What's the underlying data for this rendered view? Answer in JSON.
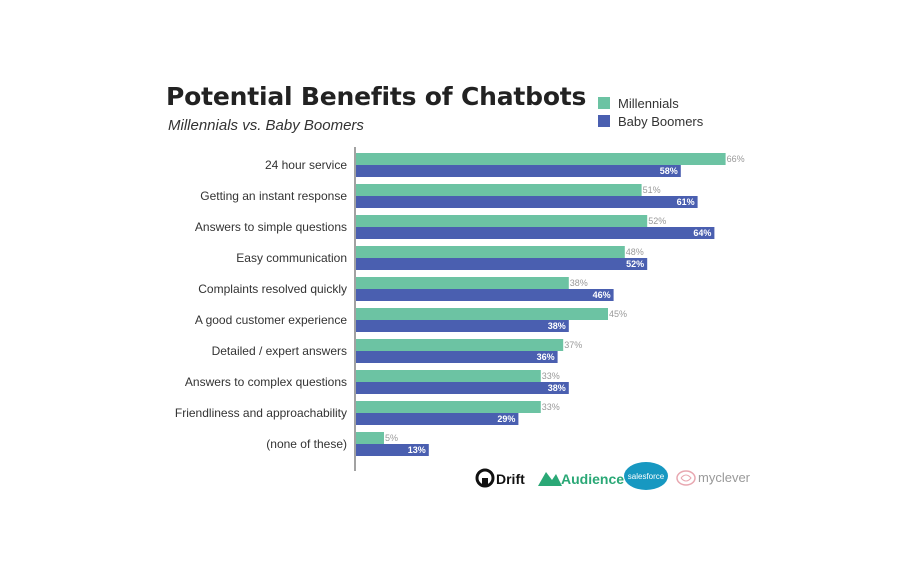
{
  "header": {
    "title": "Potential Benefits of Chatbots",
    "subtitle": "Millennials vs. Baby Boomers"
  },
  "colors": {
    "millennials": "#6cc3a3",
    "baby_boomers": "#4a5fb0",
    "axis": "#444444",
    "value_light": "#999999",
    "value_dark": "#ffffff"
  },
  "chart_data": {
    "type": "bar",
    "orientation": "horizontal",
    "title": "Potential Benefits of Chatbots",
    "subtitle": "Millennials vs. Baby Boomers",
    "categories": [
      "24 hour service",
      "Getting an instant response",
      "Answers to simple questions",
      "Easy communication",
      "Complaints resolved quickly",
      "A good customer experience",
      "Detailed / expert answers",
      "Answers to complex questions",
      "Friendliness and approachability",
      "(none of these)"
    ],
    "series": [
      {
        "name": "Millennials",
        "values": [
          66,
          51,
          52,
          48,
          38,
          45,
          37,
          33,
          33,
          5
        ],
        "labels": [
          "66%",
          "51%",
          "52%",
          "48%",
          "38%",
          "45%",
          "37%",
          "33%",
          "33%",
          "5%"
        ]
      },
      {
        "name": "Baby Boomers",
        "values": [
          58,
          61,
          64,
          52,
          46,
          38,
          36,
          38,
          29,
          13
        ],
        "labels": [
          "58%",
          "61%",
          "64%",
          "52%",
          "46%",
          "38%",
          "36%",
          "38%",
          "29%",
          "13%"
        ]
      }
    ],
    "xlim": [
      0,
      66
    ],
    "grid": false,
    "legend_position": "top-right"
  },
  "logos": {
    "drift": "Drift",
    "audience": "Audience",
    "salesforce": "salesforce",
    "myclever": "myclever"
  }
}
